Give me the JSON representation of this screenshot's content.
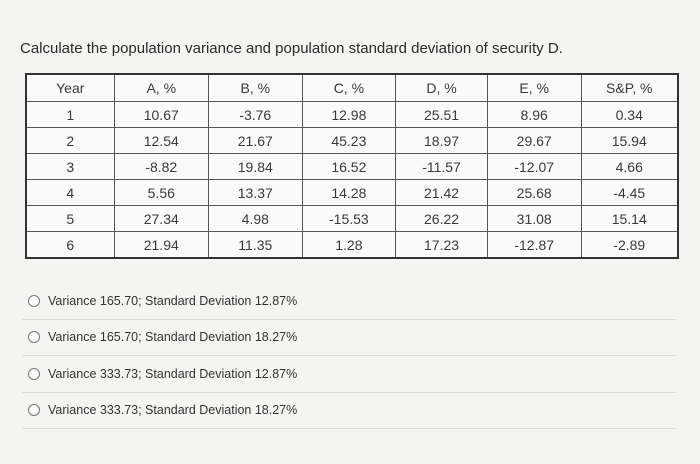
{
  "question": "Calculate the population variance and population standard deviation of security D.",
  "table": {
    "header": [
      "Year",
      "A, %",
      "B, %",
      "C, %",
      "D, %",
      "E, %",
      "S&P, %"
    ],
    "rows": [
      [
        "1",
        "10.67",
        "-3.76",
        "12.98",
        "25.51",
        "8.96",
        "0.34"
      ],
      [
        "2",
        "12.54",
        "21.67",
        "45.23",
        "18.97",
        "29.67",
        "15.94"
      ],
      [
        "3",
        "-8.82",
        "19.84",
        "16.52",
        "-11.57",
        "-12.07",
        "4.66"
      ],
      [
        "4",
        "5.56",
        "13.37",
        "14.28",
        "21.42",
        "25.68",
        "-4.45"
      ],
      [
        "5",
        "27.34",
        "4.98",
        "-15.53",
        "26.22",
        "31.08",
        "15.14"
      ],
      [
        "6",
        "21.94",
        "11.35",
        "1.28",
        "17.23",
        "-12.87",
        "-2.89"
      ]
    ]
  },
  "options": [
    "Variance 165.70; Standard Deviation 12.87%",
    "Variance 165.70; Standard Deviation 18.27%",
    "Variance 333.73; Standard Deviation 12.87%",
    "Variance 333.73; Standard Deviation 18.27%"
  ]
}
